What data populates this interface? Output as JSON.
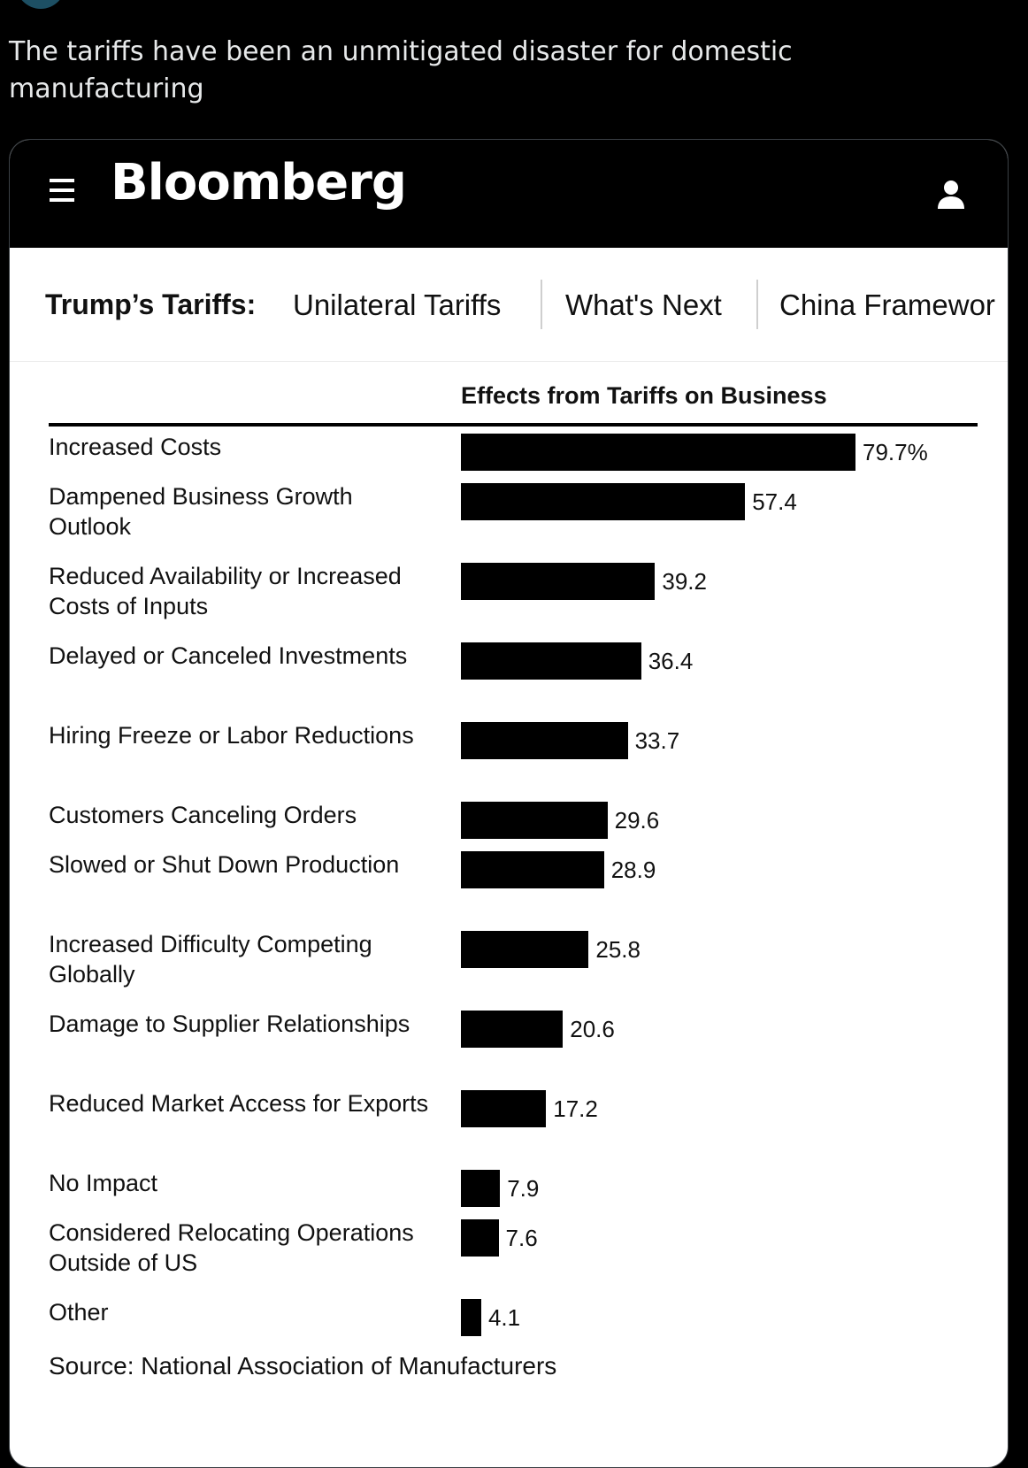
{
  "tweet": {
    "text": "The tariffs have been an unmitigated disaster for domestic manufacturing"
  },
  "masthead": {
    "logo": "Bloomberg",
    "menu_icon": "hamburger-menu-icon",
    "user_icon": "user-icon"
  },
  "subnav": {
    "title": "Trump’s Tariffs:",
    "links": [
      "Unilateral Tariffs",
      "What's Next",
      "China Framewor"
    ]
  },
  "chart_data": {
    "type": "bar",
    "orientation": "horizontal",
    "title": "Effects from Tariffs on Business",
    "categories": [
      "Increased Costs",
      "Dampened Business Growth Outlook",
      "Reduced Availability or Increased Costs of Inputs",
      "Delayed or Canceled Investments",
      "Hiring Freeze or Labor Reductions",
      "Customers Canceling Orders",
      "Slowed or Shut Down Production",
      "Increased Difficulty Competing Globally",
      "Damage to Supplier Relationships",
      "Reduced Market Access for Exports",
      "No Impact",
      "Considered Relocating Operations Outside of US",
      "Other"
    ],
    "values": [
      79.7,
      57.4,
      39.2,
      36.4,
      33.7,
      29.6,
      28.9,
      25.8,
      20.6,
      17.2,
      7.9,
      7.6,
      4.1
    ],
    "value_labels": [
      "79.7%",
      "57.4",
      "39.2",
      "36.4",
      "33.7",
      "29.6",
      "28.9",
      "25.8",
      "20.6",
      "17.2",
      "7.9",
      "7.6",
      "4.1"
    ],
    "xlim": [
      0,
      100
    ],
    "bar_color": "#000000",
    "grid": false,
    "source": "Source: National Association of Manufacturers"
  }
}
